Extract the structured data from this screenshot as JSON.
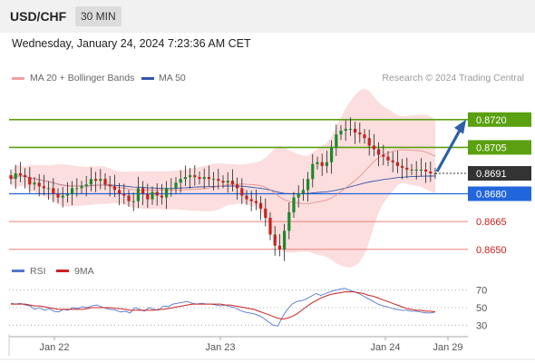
{
  "header": {
    "symbol": "USD/CHF",
    "timeframe": "30 MIN"
  },
  "datetime": "Wednesday, January 24, 2024 7:23:36 AM CET",
  "legend": {
    "ma20": "MA 20 + Bollinger Bands",
    "ma50": "MA 50",
    "rsi": "RSI",
    "ma9": "9MA",
    "credit": "Research © 2024 Trading Central"
  },
  "colors": {
    "up": "#1a8a2a",
    "down": "#c8201c",
    "resistance": "#5aa010",
    "support": "#2266dd",
    "minor": "#f08080",
    "arrow": "#2e5fa8",
    "ma50": "#3355aa",
    "rsi": "#5577cc",
    "ma9": "#cc2222"
  },
  "chart_data": [
    {
      "type": "candlestick",
      "y_range": [
        0.8645,
        0.8738
      ],
      "x_ticks": [
        "Jan 22",
        "Jan 23",
        "Jan 24",
        "Jan 29"
      ],
      "current_price": "0.8691",
      "levels": [
        {
          "label": "0.8720",
          "value": 0.872,
          "kind": "resistance"
        },
        {
          "label": "0.8705",
          "value": 0.8705,
          "kind": "resistance"
        },
        {
          "label": "0.8680",
          "value": 0.868,
          "kind": "support"
        },
        {
          "label": "0.8665",
          "value": 0.8665,
          "kind": "minor"
        },
        {
          "label": "0.8650",
          "value": 0.865,
          "kind": "minor"
        }
      ],
      "forecast_target": 0.872,
      "closes": [
        0.8688,
        0.8691,
        0.869,
        0.8689,
        0.8685,
        0.8686,
        0.8684,
        0.8683,
        0.8683,
        0.868,
        0.8678,
        0.8679,
        0.868,
        0.8683,
        0.8683,
        0.8684,
        0.8685,
        0.8688,
        0.8687,
        0.8688,
        0.8685,
        0.8684,
        0.8682,
        0.868,
        0.8679,
        0.8676,
        0.8676,
        0.8683,
        0.868,
        0.8677,
        0.8681,
        0.8679,
        0.8678,
        0.8683,
        0.8683,
        0.8686,
        0.8688,
        0.8689,
        0.869,
        0.8689,
        0.8688,
        0.8689,
        0.8688,
        0.8688,
        0.8687,
        0.8686,
        0.8687,
        0.8685,
        0.8683,
        0.8679,
        0.8677,
        0.8676,
        0.8675,
        0.8672,
        0.8667,
        0.8658,
        0.8652,
        0.865,
        0.866,
        0.867,
        0.8678,
        0.868,
        0.8682,
        0.8688,
        0.8696,
        0.8697,
        0.8695,
        0.8697,
        0.8705,
        0.8712,
        0.8714,
        0.8715,
        0.8715,
        0.8713,
        0.8712,
        0.871,
        0.8706,
        0.8704,
        0.8701,
        0.87,
        0.8698,
        0.8697,
        0.8695,
        0.8694,
        0.8693,
        0.8693,
        0.8693,
        0.8693,
        0.8692,
        0.8691,
        0.8691
      ]
    },
    {
      "type": "line",
      "title": "RSI",
      "y_ticks": [
        70,
        50,
        30
      ],
      "y_range": [
        20,
        80
      ],
      "rsi": [
        55,
        54,
        55,
        53,
        52,
        48,
        50,
        47,
        49,
        46,
        45,
        48,
        47,
        50,
        49,
        51,
        50,
        52,
        53,
        51,
        49,
        48,
        47,
        45,
        46,
        44,
        50,
        48,
        46,
        50,
        48,
        47,
        52,
        51,
        54,
        55,
        56,
        57,
        55,
        54,
        55,
        54,
        54,
        53,
        52,
        53,
        51,
        50,
        47,
        45,
        44,
        43,
        41,
        38,
        34,
        30,
        29,
        40,
        48,
        54,
        57,
        58,
        60,
        63,
        66,
        64,
        66,
        68,
        70,
        71,
        72,
        70,
        68,
        66,
        63,
        60,
        57,
        54,
        52,
        51,
        49,
        48,
        47,
        47,
        46,
        46,
        45,
        44,
        44,
        45
      ],
      "ma9": [
        54,
        54,
        54,
        54,
        53,
        52,
        52,
        51,
        50,
        49,
        48,
        48,
        48,
        48,
        48,
        48,
        49,
        50,
        50,
        50,
        50,
        50,
        49,
        49,
        48,
        47,
        47,
        47,
        47,
        47,
        47,
        48,
        48,
        49,
        50,
        51,
        52,
        53,
        54,
        54,
        54,
        54,
        54,
        54,
        54,
        53,
        53,
        52,
        51,
        50,
        49,
        48,
        46,
        44,
        42,
        40,
        38,
        37,
        38,
        40,
        43,
        47,
        51,
        55,
        58,
        61,
        63,
        65,
        66,
        67,
        68,
        68,
        68,
        67,
        66,
        64,
        63,
        61,
        59,
        57,
        55,
        53,
        51,
        49,
        48,
        47,
        47,
        46,
        46,
        45
      ]
    }
  ]
}
